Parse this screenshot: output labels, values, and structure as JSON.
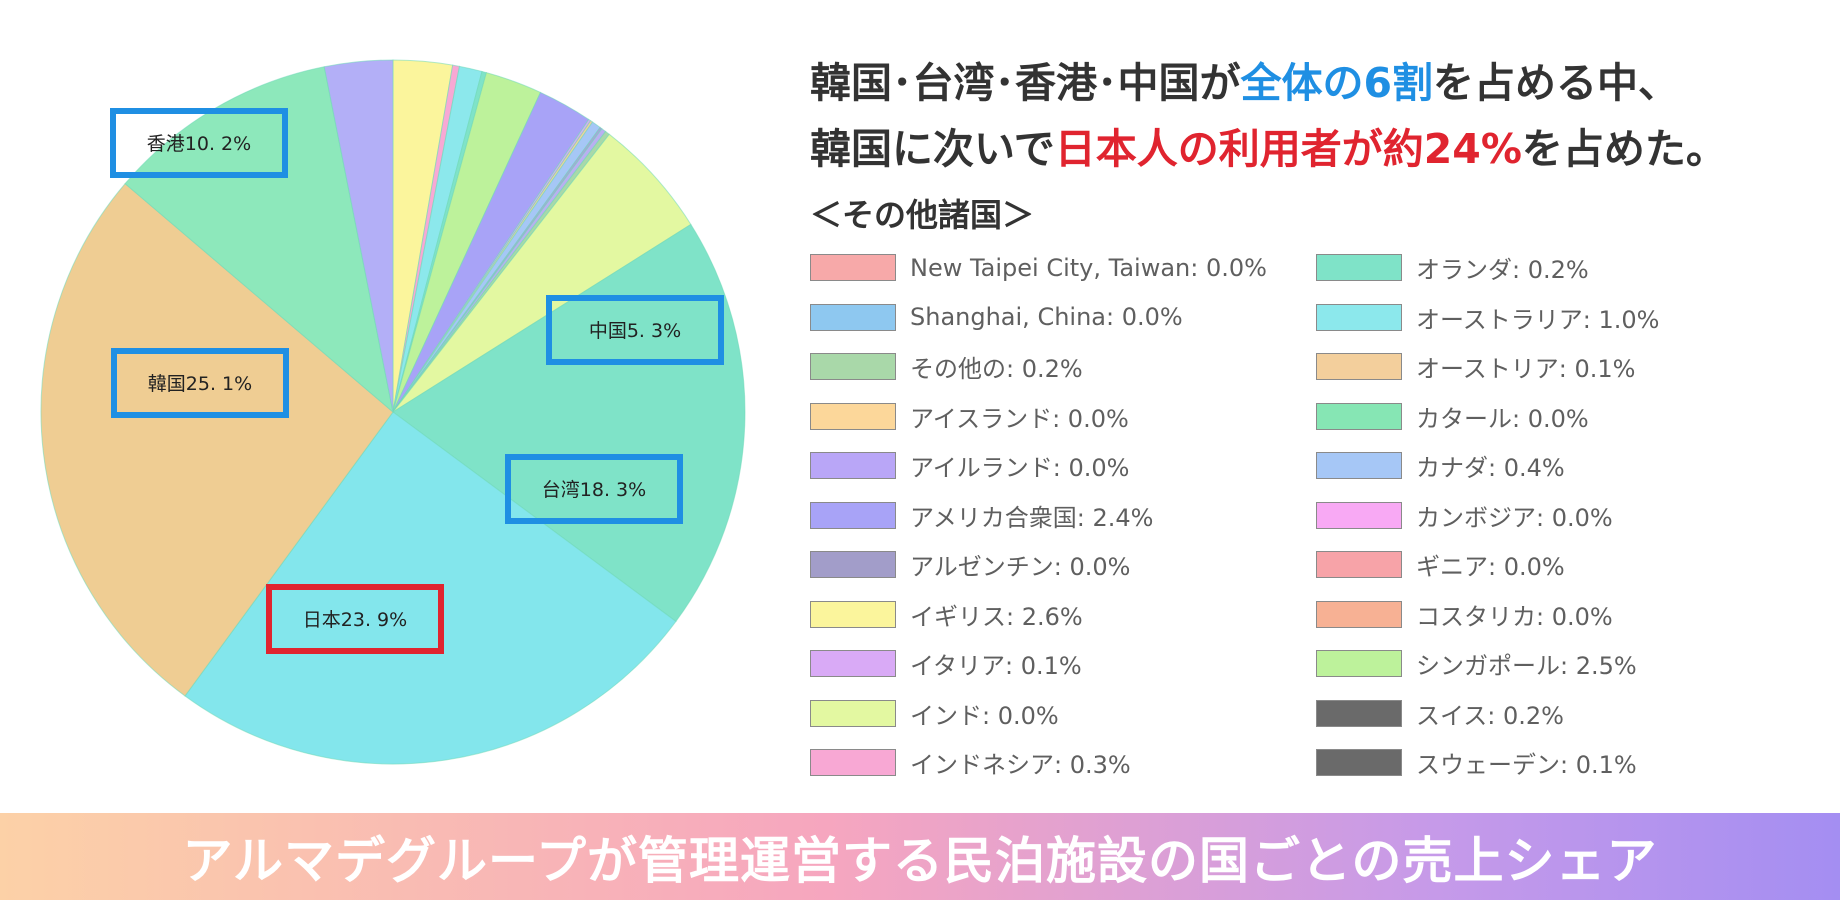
{
  "headline": {
    "line1_a": "韓国･台湾･香港･中国が",
    "line1_b": "全体の6割",
    "line1_c": "を占める中、",
    "line2_a": "韓国に次いで",
    "line2_b": "日本人の利用者が約24%",
    "line2_c": "を占めた。"
  },
  "legend_title": "＜その他諸国＞",
  "footer": "アルマデグループが管理運営する民泊施設の国ごとの売上シェア",
  "legend_left": [
    {
      "label": "New Taipei City, Taiwan: 0.0%",
      "color": "#f7a9a9"
    },
    {
      "label": "Shanghai, China: 0.0%",
      "color": "#8ec8f0"
    },
    {
      "label": "その他の: 0.2%",
      "color": "#a9d8a9"
    },
    {
      "label": "アイスランド: 0.0%",
      "color": "#fcd79a"
    },
    {
      "label": "アイルランド: 0.0%",
      "color": "#b9a6f7"
    },
    {
      "label": "アメリカ合衆国: 2.4%",
      "color": "#a8a3f7"
    },
    {
      "label": "アルゼンチン: 0.0%",
      "color": "#a29dc9"
    },
    {
      "label": "イギリス: 2.6%",
      "color": "#fbf59c"
    },
    {
      "label": "イタリア: 0.1%",
      "color": "#d9aaf6"
    },
    {
      "label": "インド: 0.0%",
      "color": "#e3f8a1"
    },
    {
      "label": "インドネシア: 0.3%",
      "color": "#f8a8d4"
    }
  ],
  "legend_right": [
    {
      "label": "オランダ: 0.2%",
      "color": "#7fe3c8"
    },
    {
      "label": "オーストラリア: 1.0%",
      "color": "#8ce8ec"
    },
    {
      "label": "オーストリア: 0.1%",
      "color": "#f3cf9c"
    },
    {
      "label": "カタール: 0.0%",
      "color": "#86e6b4"
    },
    {
      "label": "カナダ: 0.4%",
      "color": "#a6c7f6"
    },
    {
      "label": "カンボジア: 0.0%",
      "color": "#f8a9f4"
    },
    {
      "label": "ギニア: 0.0%",
      "color": "#f7a3a8"
    },
    {
      "label": "コスタリカ: 0.0%",
      "color": "#f7b194"
    },
    {
      "label": "シンガポール: 2.5%",
      "color": "#bdf29b"
    },
    {
      "label": "スイス: 0.2%",
      "color": "#6a6a6a"
    },
    {
      "label": "スウェーデン: 0.1%",
      "color": "#6a6a6a"
    }
  ],
  "chart_data": {
    "type": "pie",
    "title": "",
    "slices": [
      {
        "label": "イギリス",
        "value": 2.6,
        "color": "#fbf59c"
      },
      {
        "label": "インドネシア",
        "value": 0.3,
        "color": "#f8a8d4"
      },
      {
        "label": "オーストラリア",
        "value": 1.0,
        "color": "#8ce8ec"
      },
      {
        "label": "オランダ",
        "value": 0.2,
        "color": "#7fe3c8"
      },
      {
        "label": "シンガポール",
        "value": 2.5,
        "color": "#bdf29b"
      },
      {
        "label": "アメリカ合衆国",
        "value": 2.4,
        "color": "#a8a3f7"
      },
      {
        "label": "イタリア",
        "value": 0.1,
        "color": "#d9aaf6"
      },
      {
        "label": "オーストリア",
        "value": 0.1,
        "color": "#f3cf9c"
      },
      {
        "label": "カナダ",
        "value": 0.4,
        "color": "#a6c7f6"
      },
      {
        "label": "スウェーデン",
        "value": 0.1,
        "color": "#a9a3d9"
      },
      {
        "label": "スイス",
        "value": 0.2,
        "color": "#b9b0f0"
      },
      {
        "label": "その他の",
        "value": 0.2,
        "color": "#a9d8a9"
      },
      {
        "label": "中国",
        "value": 5.3,
        "color": "#e3f8a1",
        "callout": "中国5. 3%"
      },
      {
        "label": "台湾",
        "value": 18.3,
        "color": "#7fe3c8",
        "callout": "台湾18. 3%"
      },
      {
        "label": "日本",
        "value": 23.9,
        "color": "#83e6ec",
        "callout": "日本23. 9%"
      },
      {
        "label": "韓国",
        "value": 25.1,
        "color": "#efcd93",
        "callout": "韓国25. 1%"
      },
      {
        "label": "香港",
        "value": 10.2,
        "color": "#8de8bb",
        "callout": "香港10. 2%"
      },
      {
        "label": "other-small",
        "value": 3.0,
        "color": "#b3aff7"
      }
    ],
    "callout_colors": {
      "default": "#1f8fe3",
      "highlight": "#e0242f"
    },
    "highlight": "日本"
  }
}
